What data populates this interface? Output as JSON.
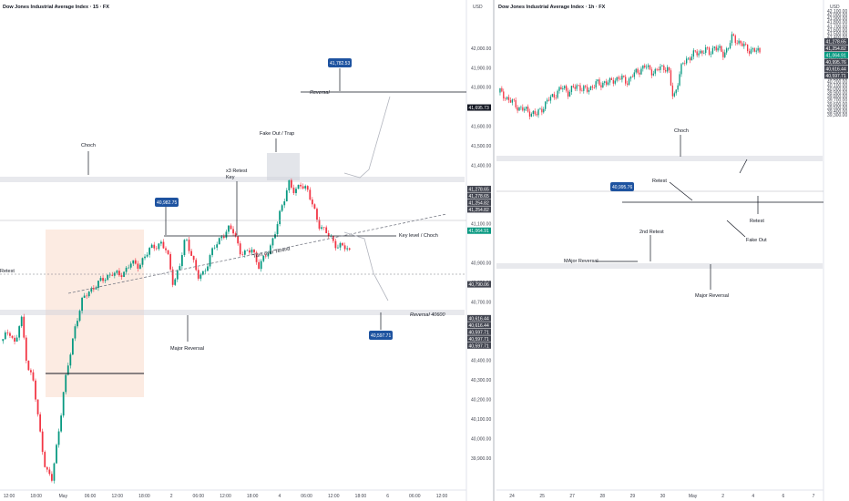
{
  "chart_data": [
    {
      "type": "candlestick",
      "title": "Dow Jones Industrial Average Index · 15 · FX",
      "currency": "USD",
      "ylim": [
        39750,
        42200
      ],
      "y_ticks": [
        {
          "v": 42000,
          "t": "42,000.00"
        },
        {
          "v": 41900,
          "t": "41,900.00"
        },
        {
          "v": 41800,
          "t": "41,800.00"
        },
        {
          "v": 41700,
          "t": "41,700.00"
        },
        {
          "v": 41600,
          "t": "41,600.00"
        },
        {
          "v": 41500,
          "t": "41,500.00"
        },
        {
          "v": 41400,
          "t": "41,400.00"
        },
        {
          "v": 41100,
          "t": "41,100.00"
        },
        {
          "v": 40900,
          "t": "40,900.00"
        },
        {
          "v": 40800,
          "t": "40,800.00"
        },
        {
          "v": 40700,
          "t": "40,700.00"
        },
        {
          "v": 40400,
          "t": "40,400.00"
        },
        {
          "v": 40300,
          "t": "40,300.00"
        },
        {
          "v": 40200,
          "t": "40,200.00"
        },
        {
          "v": 40100,
          "t": "40,100.00"
        },
        {
          "v": 40000,
          "t": "40,000.00"
        },
        {
          "v": 39900,
          "t": "39,900.00"
        }
      ],
      "x_ticks": [
        "12:00",
        "18:00",
        "May",
        "06:00",
        "12:00",
        "18:00",
        "2",
        "06:00",
        "12:00",
        "18:00",
        "4",
        "06:00",
        "12:00",
        "18:00",
        "6",
        "06:00",
        "12:00"
      ],
      "candle_path": [
        40500,
        40560,
        40480,
        40620,
        40380,
        40290,
        40050,
        39850,
        39780,
        40000,
        40250,
        40420,
        40600,
        40700,
        40750,
        40780,
        40800,
        40830,
        40850,
        40830,
        40860,
        40900,
        40880,
        40920,
        40960,
        40990,
        41000,
        40950,
        40800,
        40870,
        41030,
        40950,
        40820,
        40850,
        40930,
        40990,
        41040,
        41070,
        41060,
        40960,
        40940,
        40980,
        40880,
        40920,
        40990,
        41080,
        41200,
        41320,
        41250,
        41310,
        41280,
        41180,
        41100,
        41060,
        41020,
        40990,
        40980,
        40960
      ],
      "right_labels": [
        {
          "v": 41695.73,
          "t": "41,695.73",
          "c": "#131722"
        },
        {
          "v": 41278.65,
          "t": "41,278.65",
          "c": "#434651"
        },
        {
          "v": 41278.65,
          "t": "41,278.65",
          "c": "#434651"
        },
        {
          "v": 41254.82,
          "t": "41,254.82",
          "c": "#434651"
        },
        {
          "v": 41254.82,
          "t": "41,254.82",
          "c": "#434651"
        },
        {
          "v": 41064.91,
          "t": "41,064.91",
          "c": "#089981"
        },
        {
          "v": 40790.06,
          "t": "40,790.06",
          "c": "#434651"
        },
        {
          "v": 40616.44,
          "t": "40,616.44",
          "c": "#434651"
        },
        {
          "v": 40616.44,
          "t": "40,616.44",
          "c": "#434651"
        },
        {
          "v": 40597.71,
          "t": "40,597.71",
          "c": "#434651"
        },
        {
          "v": 40597.71,
          "t": "40,597.71",
          "c": "#434651"
        },
        {
          "v": 40597.71,
          "t": "40,597.71",
          "c": "#434651"
        }
      ],
      "annotations": [
        "Choch",
        "Fake Out / Trap",
        "x3 Retest",
        "Key",
        "Key level / Choch",
        "Turn over Terend",
        "Reversal",
        "Reversal 40600",
        "Major Reversal",
        "Retest"
      ],
      "callouts": [
        "41,782.53",
        "40,982.75",
        "40,597.71"
      ]
    },
    {
      "type": "candlestick",
      "title": "Dow Jones Industrial Average Index · 1h · FX",
      "currency": "USD",
      "ylim": [
        29250,
        42150
      ],
      "y_ticks": [
        {
          "v": 42100,
          "t": "42,100.00"
        },
        {
          "v": 42000,
          "t": "42,000.00"
        },
        {
          "v": 41900,
          "t": "41,900.00"
        },
        {
          "v": 41800,
          "t": "41,800.00"
        },
        {
          "v": 41700,
          "t": "41,700.00"
        },
        {
          "v": 41600,
          "t": "41,600.00"
        },
        {
          "v": 41500,
          "t": "41,500.00"
        },
        {
          "v": 41400,
          "t": "41,400.00"
        },
        {
          "v": 41300,
          "t": "41,300.00"
        },
        {
          "v": 40900,
          "t": "40,900.00"
        },
        {
          "v": 40800,
          "t": "40,800.00"
        },
        {
          "v": 40700,
          "t": "40,700.00"
        },
        {
          "v": 40500,
          "t": "40,500.00"
        },
        {
          "v": 40400,
          "t": "40,400.00"
        },
        {
          "v": 40300,
          "t": "40,300.00"
        },
        {
          "v": 40200,
          "t": "40,200.00"
        },
        {
          "v": 40100,
          "t": "40,100.00"
        },
        {
          "v": 40000,
          "t": "40,000.00"
        },
        {
          "v": 39900,
          "t": "39,900.00"
        },
        {
          "v": 39800,
          "t": "39,800.00"
        },
        {
          "v": 39700,
          "t": "39,700.00"
        },
        {
          "v": 39600,
          "t": "39,600.00"
        },
        {
          "v": 39500,
          "t": "39,500.00"
        },
        {
          "v": 39400,
          "t": "39,400.00"
        },
        {
          "v": 39300,
          "t": "39,300.00"
        }
      ],
      "x_ticks": [
        "24",
        "25",
        "27",
        "28",
        "29",
        "30",
        "May",
        "2",
        "4",
        "6",
        "7"
      ],
      "candle_path": [
        39900,
        39800,
        39700,
        39600,
        39500,
        39450,
        39400,
        39350,
        39300,
        39450,
        39600,
        39750,
        39850,
        39950,
        40050,
        39900,
        40000,
        40100,
        40000,
        39950,
        40050,
        40150,
        40100,
        40200,
        40150,
        40250,
        40300,
        40250,
        40200,
        40350,
        40450,
        40550,
        40600,
        40500,
        40450,
        40550,
        40600,
        40500,
        39700,
        40200,
        40650,
        40800,
        40900,
        40950,
        41000,
        41050,
        40950,
        41150,
        41050,
        40950,
        41100,
        41400,
        41300,
        41200,
        41100,
        41050,
        41020,
        41000
      ],
      "right_labels": [
        {
          "v": 41278.65,
          "t": "41,278.65",
          "c": "#434651"
        },
        {
          "v": 41254.82,
          "t": "41,254.82",
          "c": "#434651"
        },
        {
          "v": 41064.91,
          "t": "41,064.91",
          "c": "#089981"
        },
        {
          "v": 40995.76,
          "t": "40,995.76",
          "c": "#434651"
        },
        {
          "v": 40616.44,
          "t": "40,616.44",
          "c": "#434651"
        },
        {
          "v": 40597.71,
          "t": "40,597.71",
          "c": "#434651"
        }
      ],
      "annotations": [
        "Choch",
        "Retest",
        "Fake Out",
        "Retest",
        "2nd Retest",
        "MAjor Reversal",
        "Major Reversal"
      ],
      "callouts": [
        "40,995.76"
      ]
    }
  ],
  "colors": {
    "up": "#089981",
    "down": "#f23645",
    "blue": "#1e53a0",
    "zone": "#f7d9cc",
    "grey_zone": "#d1d4dc"
  }
}
